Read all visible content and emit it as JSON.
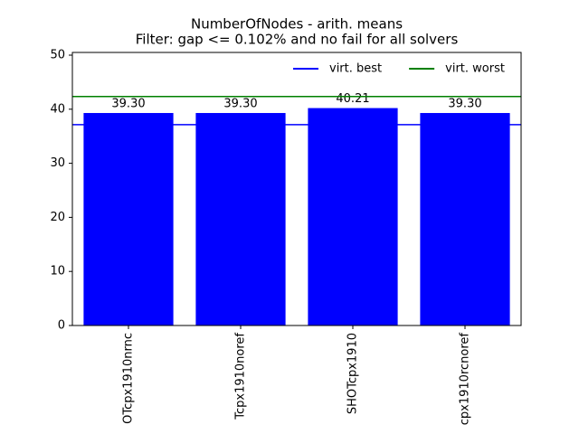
{
  "chart_data": {
    "type": "bar",
    "title": "NumberOfNodes - arith. means",
    "subtitle": "Filter: gap <= 0.102% and no fail for all solvers",
    "categories": [
      "OTcpx1910nrnc",
      "Tcpx1910noref",
      "SHOTcpx1910",
      "cpx1910rcnoref"
    ],
    "values": [
      39.3,
      39.3,
      40.21,
      39.3
    ],
    "value_labels": [
      "39.30",
      "39.30",
      "40.21",
      "39.30"
    ],
    "color": "#0000ff",
    "lines": [
      {
        "name": "virt. best",
        "color": "#0000ff",
        "value": 37.15
      },
      {
        "name": "virt. worst",
        "color": "#008000",
        "value": 42.35
      }
    ],
    "legend": "upper right",
    "ylim": [
      0,
      50.5
    ],
    "yticks": [
      0,
      10,
      20,
      30,
      40,
      50
    ]
  }
}
